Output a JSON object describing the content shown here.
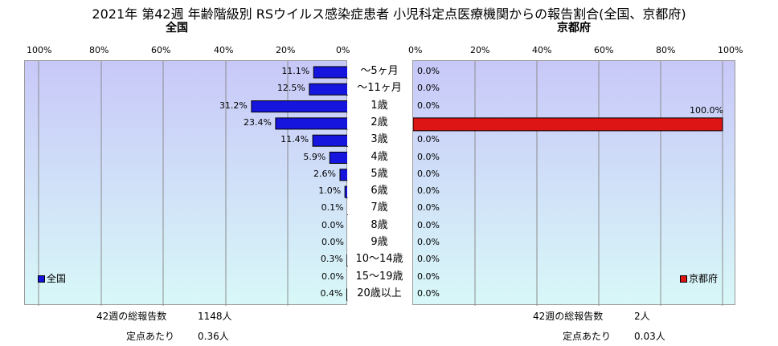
{
  "title": "2021年 第42週 年齢階級別 RSウイルス感染症患者 小児科定点医療機関からの報告割合(全国、京都府)",
  "colors": {
    "national": "#1515dd",
    "kyoto": "#dd1515",
    "grid": "#8c8c8c",
    "bg_top": "#c8c8f8",
    "bg_bottom": "#d8f8f8"
  },
  "chart_data": [
    {
      "type": "bar",
      "orientation": "horizontal",
      "subtitle": "全国",
      "categories": [
        "～5ヶ月",
        "～11ヶ月",
        "1歳",
        "2歳",
        "3歳",
        "4歳",
        "5歳",
        "6歳",
        "7歳",
        "8歳",
        "9歳",
        "10～14歳",
        "15～19歳",
        "20歳以上"
      ],
      "series": [
        {
          "name": "全国",
          "values": [
            11.1,
            12.5,
            31.2,
            23.4,
            11.4,
            5.9,
            2.6,
            1.0,
            0.1,
            0.0,
            0.0,
            0.3,
            0.0,
            0.4
          ]
        }
      ],
      "value_labels": [
        "11.1%",
        "12.5%",
        "31.2%",
        "23.4%",
        "11.4%",
        "5.9%",
        "2.6%",
        "1.0%",
        "0.1%",
        "0.0%",
        "0.0%",
        "0.3%",
        "0.0%",
        "0.4%"
      ],
      "xlim": [
        0,
        100
      ],
      "x_reversed": true,
      "xticks": [
        "100%",
        "80%",
        "60%",
        "40%",
        "20%",
        "0%"
      ],
      "grid": true,
      "legend": "bottom-left"
    },
    {
      "type": "bar",
      "orientation": "horizontal",
      "subtitle": "京都府",
      "categories": [
        "～5ヶ月",
        "～11ヶ月",
        "1歳",
        "2歳",
        "3歳",
        "4歳",
        "5歳",
        "6歳",
        "7歳",
        "8歳",
        "9歳",
        "10～14歳",
        "15～19歳",
        "20歳以上"
      ],
      "series": [
        {
          "name": "京都府",
          "values": [
            0.0,
            0.0,
            0.0,
            100.0,
            0.0,
            0.0,
            0.0,
            0.0,
            0.0,
            0.0,
            0.0,
            0.0,
            0.0,
            0.0
          ]
        }
      ],
      "value_labels": [
        "0.0%",
        "0.0%",
        "0.0%",
        "100.0%",
        "0.0%",
        "0.0%",
        "0.0%",
        "0.0%",
        "0.0%",
        "0.0%",
        "0.0%",
        "0.0%",
        "0.0%",
        "0.0%"
      ],
      "xlim": [
        0,
        100
      ],
      "xticks": [
        "0%",
        "20%",
        "40%",
        "60%",
        "80%",
        "100%"
      ],
      "grid": true,
      "legend": "bottom-right"
    }
  ],
  "footer": {
    "national": {
      "total_label": "42週の総報告数",
      "total_value": "1148人",
      "per_label": "定点あたり",
      "per_value": "0.36人"
    },
    "kyoto": {
      "total_label": "42週の総報告数",
      "total_value": "2人",
      "per_label": "定点あたり",
      "per_value": "0.03人"
    }
  }
}
